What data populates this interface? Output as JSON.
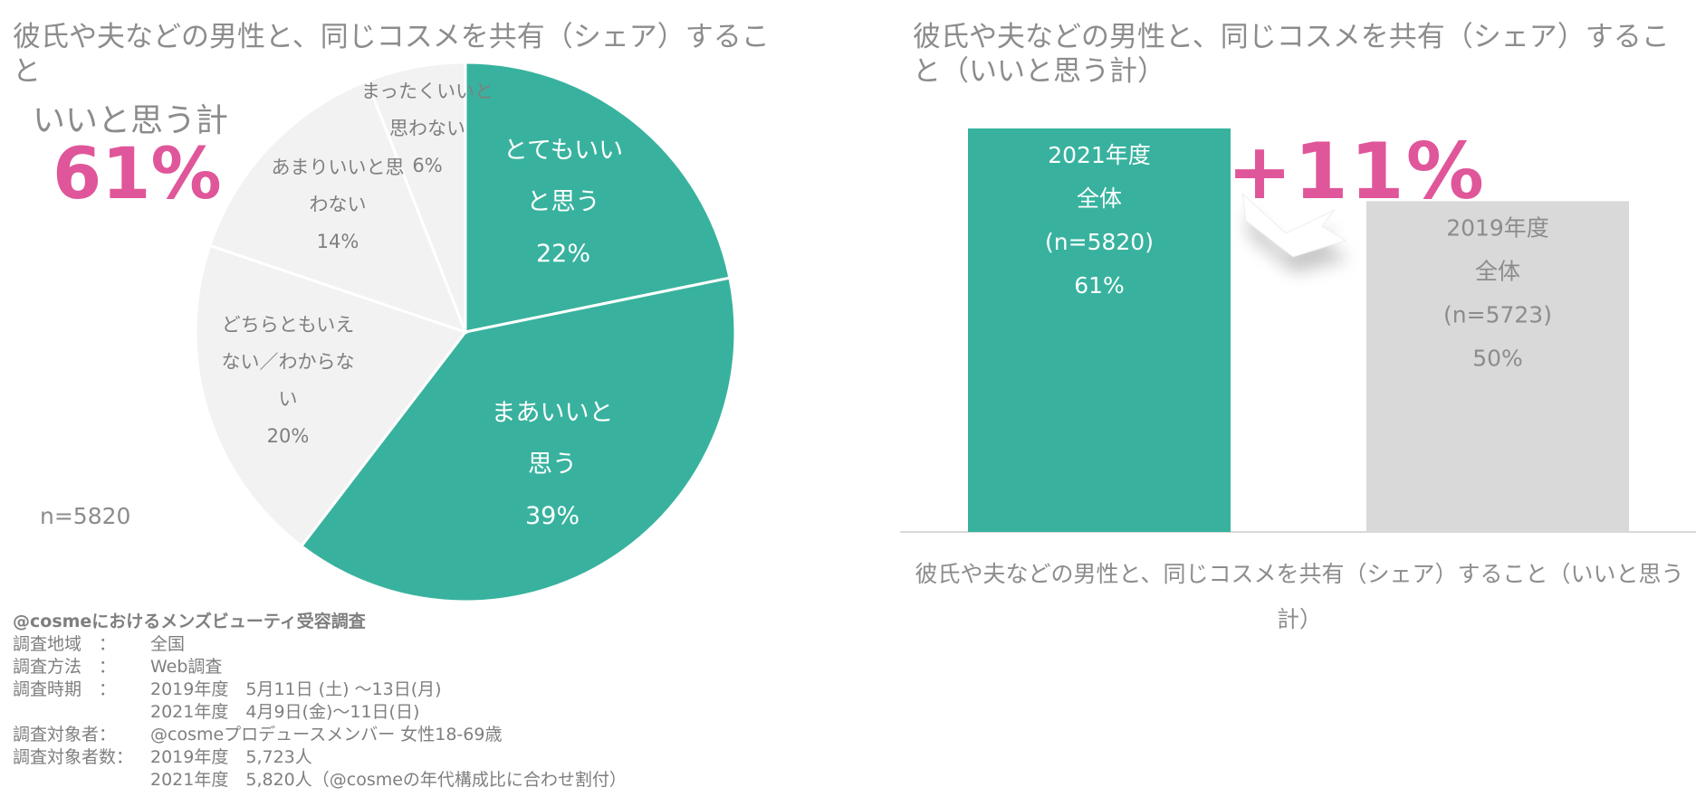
{
  "left_panel": {
    "title": "彼氏や夫などの男性と、同じコスメを共有（シェア）すること",
    "summary_label": "いいと思う計",
    "summary_value": "61%",
    "sample": "n=5820"
  },
  "right_panel": {
    "title": "彼氏や夫などの男性と、同じコスメを共有（シェア）すること（いいと思う計）",
    "difference": "+11%"
  },
  "chart_data": [
    {
      "type": "pie",
      "title": "彼氏や夫などの男性と、同じコスメを共有（シェア）すること",
      "slices": [
        {
          "label_lines": [
            "とてもいい",
            "と思う"
          ],
          "value": 22,
          "value_label": "22%",
          "color": "#38b29e"
        },
        {
          "label_lines": [
            "まあいいと",
            "思う"
          ],
          "value": 39,
          "value_label": "39%",
          "color": "#38b29e"
        },
        {
          "label_lines": [
            "どちらともいえ",
            "ない／わからな",
            "い"
          ],
          "value": 20,
          "value_label": "20%",
          "color": "#f2f2f2"
        },
        {
          "label_lines": [
            "あまりいいと思",
            "わない"
          ],
          "value": 14,
          "value_label": "14%",
          "color": "#f2f2f2"
        },
        {
          "label_lines": [
            "まったくいいと",
            "思わない"
          ],
          "value": 6,
          "value_label": "6%",
          "color": "#f2f2f2"
        }
      ]
    },
    {
      "type": "bar",
      "title": "彼氏や夫などの男性と、同じコスメを共有（シェア）すること（いいと思う計）",
      "categories": [
        "彼氏や夫などの男性と、同じコスメを共有（シェア）すること（いいと思う計）"
      ],
      "series": [
        {
          "name": "2021年度",
          "label_lines": [
            "2021年度",
            "全体",
            "(n=5820)",
            "61%"
          ],
          "values": [
            61
          ],
          "color": "#38b29e"
        },
        {
          "name": "2019年度",
          "label_lines": [
            "2019年度",
            "全体",
            "(n=5723)",
            "50%"
          ],
          "values": [
            50
          ],
          "color": "#d9d9d9"
        }
      ],
      "ylim": [
        0,
        63
      ]
    }
  ],
  "survey": {
    "heading": "@cosmeにおけるメンズビューティ受容調査",
    "rows": [
      {
        "label": "調査地域　：",
        "value": "全国"
      },
      {
        "label": "調査方法　：",
        "value": "Web調査"
      },
      {
        "label": "調査時期　：",
        "value": "2019年度　5月11日 (土) ～13日(月)"
      },
      {
        "label": "",
        "value": "2021年度　4月9日(金)～11日(日)"
      },
      {
        "label": "調査対象者：",
        "value": "@cosmeプロデュースメンバー 女性18-69歳"
      },
      {
        "label": "調査対象者数：",
        "value": "2019年度　5,723人"
      },
      {
        "label": "",
        "value": "2021年度　5,820人（@cosmeの年代構成比に合わせ割付）"
      }
    ]
  }
}
